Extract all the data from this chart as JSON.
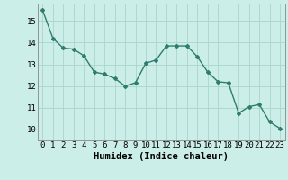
{
  "x": [
    0,
    1,
    2,
    3,
    4,
    5,
    6,
    7,
    8,
    9,
    10,
    11,
    12,
    13,
    14,
    15,
    16,
    17,
    18,
    19,
    20,
    21,
    22,
    23
  ],
  "y": [
    15.5,
    14.2,
    13.75,
    13.7,
    13.4,
    12.65,
    12.55,
    12.35,
    12.0,
    12.15,
    13.05,
    13.2,
    13.85,
    13.85,
    13.85,
    13.35,
    12.65,
    12.2,
    12.15,
    10.75,
    11.05,
    11.15,
    10.35,
    10.05
  ],
  "line_color": "#2e7d6e",
  "marker": "D",
  "markersize": 2.0,
  "linewidth": 1.0,
  "bg_color": "#cceee8",
  "grid_color": "#aad4cc",
  "xlabel": "Humidex (Indice chaleur)",
  "xlabel_fontsize": 7.5,
  "tick_fontsize": 6.5,
  "xlim": [
    -0.5,
    23.5
  ],
  "ylim": [
    9.5,
    15.8
  ],
  "yticks": [
    10,
    11,
    12,
    13,
    14,
    15
  ],
  "xticks": [
    0,
    1,
    2,
    3,
    4,
    5,
    6,
    7,
    8,
    9,
    10,
    11,
    12,
    13,
    14,
    15,
    16,
    17,
    18,
    19,
    20,
    21,
    22,
    23
  ]
}
